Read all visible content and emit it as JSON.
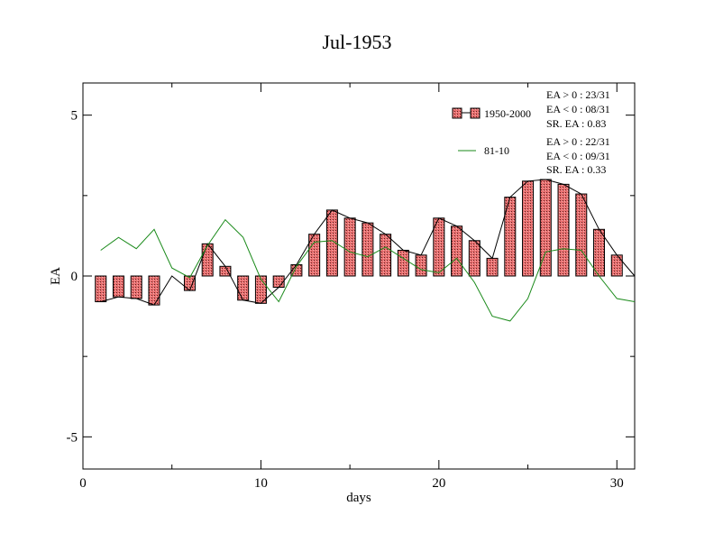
{
  "chart_data": {
    "type": "bar",
    "title": "Jul-1953",
    "xlabel": "days",
    "ylabel": "EA",
    "xlim": [
      0,
      31
    ],
    "ylim": [
      -6,
      6
    ],
    "x_ticks": [
      0,
      10,
      20,
      30
    ],
    "y_ticks": [
      -5,
      0,
      5
    ],
    "days": [
      1,
      2,
      3,
      4,
      5,
      6,
      7,
      8,
      9,
      10,
      11,
      12,
      13,
      14,
      15,
      16,
      17,
      18,
      19,
      20,
      21,
      22,
      23,
      24,
      25,
      26,
      27,
      28,
      29,
      30,
      31
    ],
    "series": [
      {
        "name": "1950-2000",
        "kind": "bar",
        "values": [
          -0.8,
          -0.65,
          -0.7,
          -0.9,
          0.0,
          -0.45,
          1.0,
          0.3,
          -0.75,
          -0.85,
          -0.35,
          0.35,
          1.3,
          2.05,
          1.8,
          1.65,
          1.3,
          0.8,
          0.65,
          1.8,
          1.55,
          1.1,
          0.55,
          2.45,
          2.95,
          3.0,
          2.85,
          2.55,
          1.45,
          0.65,
          0.0
        ]
      },
      {
        "name": "81-10",
        "kind": "line",
        "values": [
          0.8,
          1.2,
          0.85,
          1.45,
          0.25,
          -0.05,
          0.95,
          1.75,
          1.2,
          -0.1,
          -0.8,
          0.3,
          1.05,
          1.1,
          0.75,
          0.6,
          0.9,
          0.55,
          0.2,
          0.1,
          0.55,
          -0.2,
          -1.25,
          -1.4,
          -0.7,
          0.75,
          0.85,
          0.8,
          0.0,
          -0.7,
          -0.8
        ]
      }
    ],
    "legend_placement": "top-right",
    "grid": false,
    "colors": {
      "bar_fill": "#e86f6f",
      "bar_edge": "#000000",
      "envelope_line": "#000000",
      "green_line": "#1a8a1a"
    }
  },
  "stats": {
    "group1": [
      "EA > 0 : 23/31",
      "EA < 0 : 08/31",
      "SR. EA :  0.83"
    ],
    "group2": [
      "EA > 0 : 22/31",
      "EA < 0 : 09/31",
      "SR. EA :  0.33"
    ]
  }
}
